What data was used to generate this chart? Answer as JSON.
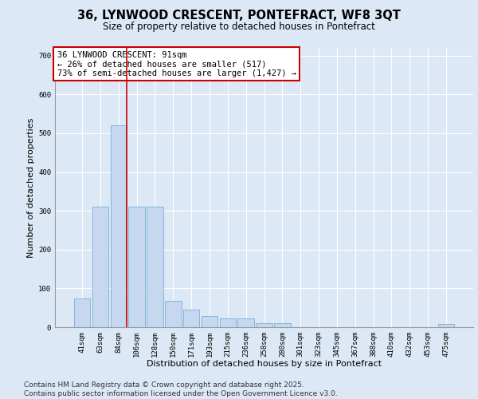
{
  "title_line1": "36, LYNWOOD CRESCENT, PONTEFRACT, WF8 3QT",
  "title_line2": "Size of property relative to detached houses in Pontefract",
  "xlabel": "Distribution of detached houses by size in Pontefract",
  "ylabel": "Number of detached properties",
  "categories": [
    "41sqm",
    "63sqm",
    "84sqm",
    "106sqm",
    "128sqm",
    "150sqm",
    "171sqm",
    "193sqm",
    "215sqm",
    "236sqm",
    "258sqm",
    "280sqm",
    "301sqm",
    "323sqm",
    "345sqm",
    "367sqm",
    "388sqm",
    "410sqm",
    "432sqm",
    "453sqm",
    "475sqm"
  ],
  "values": [
    75,
    310,
    520,
    310,
    310,
    68,
    45,
    28,
    22,
    22,
    10,
    10,
    0,
    0,
    0,
    0,
    0,
    0,
    0,
    0,
    8
  ],
  "bar_color": "#c5d8f0",
  "bar_edge_color": "#7aafd4",
  "vline_color": "#cc0000",
  "vline_pos": 2.43,
  "annotation_text": "36 LYNWOOD CRESCENT: 91sqm\n← 26% of detached houses are smaller (517)\n73% of semi-detached houses are larger (1,427) →",
  "annotation_box_color": "#cc0000",
  "background_color": "#dce8f6",
  "plot_bg_color": "#dce8f6",
  "ylim": [
    0,
    720
  ],
  "yticks": [
    0,
    100,
    200,
    300,
    400,
    500,
    600,
    700
  ],
  "footer_line1": "Contains HM Land Registry data © Crown copyright and database right 2025.",
  "footer_line2": "Contains public sector information licensed under the Open Government Licence v3.0.",
  "title_fontsize": 10.5,
  "subtitle_fontsize": 8.5,
  "axis_label_fontsize": 8,
  "tick_fontsize": 6.5,
  "annotation_fontsize": 7.5,
  "footer_fontsize": 6.5
}
